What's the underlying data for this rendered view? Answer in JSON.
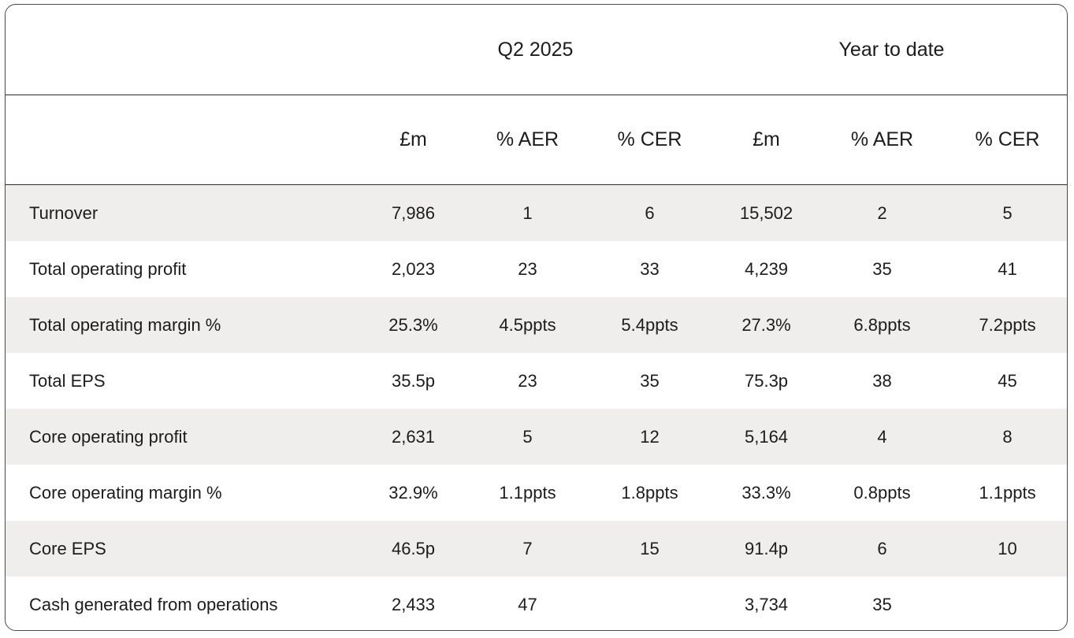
{
  "table": {
    "group_headers": {
      "q2": "Q2 2025",
      "ytd": "Year to date"
    },
    "columns": [
      "£m",
      "% AER",
      "% CER",
      "£m",
      "% AER",
      "% CER"
    ],
    "rows": [
      {
        "label": "Turnover",
        "values": [
          "7,986",
          "1",
          "6",
          "15,502",
          "2",
          "5"
        ]
      },
      {
        "label": "Total operating profit",
        "values": [
          "2,023",
          "23",
          "33",
          "4,239",
          "35",
          "41"
        ]
      },
      {
        "label": "Total operating margin %",
        "values": [
          "25.3%",
          "4.5ppts",
          "5.4ppts",
          "27.3%",
          "6.8ppts",
          "7.2ppts"
        ]
      },
      {
        "label": "Total EPS",
        "values": [
          "35.5p",
          "23",
          "35",
          "75.3p",
          "38",
          "45"
        ]
      },
      {
        "label": "Core operating profit",
        "values": [
          "2,631",
          "5",
          "12",
          "5,164",
          "4",
          "8"
        ]
      },
      {
        "label": "Core operating margin %",
        "values": [
          "32.9%",
          "1.1ppts",
          "1.8ppts",
          "33.3%",
          "0.8ppts",
          "1.1ppts"
        ]
      },
      {
        "label": "Core EPS",
        "values": [
          "46.5p",
          "7",
          "15",
          "91.4p",
          "6",
          "10"
        ]
      },
      {
        "label": "Cash generated from operations",
        "values": [
          "2,433",
          "47",
          "",
          "3,734",
          "35",
          ""
        ]
      }
    ]
  }
}
